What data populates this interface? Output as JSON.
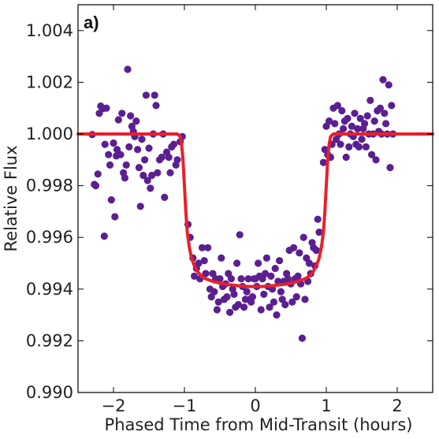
{
  "chart_data": {
    "type": "scatter",
    "panel_label": "a)",
    "xlabel": "Phased Time from Mid-Transit (hours)",
    "ylabel": "Relative Flux",
    "xlim": [
      -2.5,
      2.5
    ],
    "ylim": [
      0.99,
      1.005
    ],
    "x_ticks": [
      -2,
      -1,
      0,
      1,
      2
    ],
    "x_tick_labels": [
      "−2",
      "−1",
      "0",
      "1",
      "2"
    ],
    "y_ticks": [
      0.99,
      0.992,
      0.994,
      0.996,
      0.998,
      1.0,
      1.002,
      1.004
    ],
    "y_tick_labels": [
      "0.990",
      "0.992",
      "0.994",
      "0.996",
      "0.998",
      "1.000",
      "1.002",
      "1.004"
    ],
    "grid": false,
    "colors": {
      "points": "#5b1f91",
      "model": "#e8202a"
    },
    "series": [
      {
        "kind": "points",
        "points": [
          [
            -2.3,
            0.99998
          ],
          [
            -2.27,
            0.99805
          ],
          [
            -2.25,
            0.998
          ],
          [
            -2.22,
            0.99845
          ],
          [
            -2.2,
            1.0008
          ],
          [
            -2.18,
            1.00108
          ],
          [
            -2.15,
            1.00098
          ],
          [
            -2.13,
            0.99605
          ],
          [
            -2.12,
            0.9996
          ],
          [
            -2.1,
            1.001
          ],
          [
            -2.07,
            0.9992
          ],
          [
            -2.05,
            0.9988
          ],
          [
            -2.03,
            0.99745
          ],
          [
            -2.0,
            0.99965
          ],
          [
            -1.98,
            0.9968
          ],
          [
            -1.96,
            0.99915
          ],
          [
            -1.95,
            0.9994
          ],
          [
            -1.93,
            1.00055
          ],
          [
            -1.9,
            0.9992
          ],
          [
            -1.88,
            1.0008
          ],
          [
            -1.86,
            0.9985
          ],
          [
            -1.84,
            0.9983
          ],
          [
            -1.82,
            0.9988
          ],
          [
            -1.8,
            1.0025
          ],
          [
            -1.78,
            0.9995
          ],
          [
            -1.76,
            1.0007
          ],
          [
            -1.74,
            1.0003
          ],
          [
            -1.72,
            1.0001
          ],
          [
            -1.7,
            0.9999
          ],
          [
            -1.68,
            1.0005
          ],
          [
            -1.66,
            0.9994
          ],
          [
            -1.64,
            0.9987
          ],
          [
            -1.62,
            0.9972
          ],
          [
            -1.6,
            0.9998
          ],
          [
            -1.58,
            0.9984
          ],
          [
            -1.56,
            0.999
          ],
          [
            -1.54,
            1.0015
          ],
          [
            -1.52,
            0.9982
          ],
          [
            -1.5,
            0.99945
          ],
          [
            -1.48,
            0.9979
          ],
          [
            -1.46,
            0.9984
          ],
          [
            -1.44,
            1.0
          ],
          [
            -1.42,
            1.0015
          ],
          [
            -1.4,
            1.0011
          ],
          [
            -1.38,
            0.9985
          ],
          [
            -1.35,
            0.999
          ],
          [
            -1.32,
            0.9991
          ],
          [
            -1.3,
            1.0
          ],
          [
            -1.28,
            0.99755
          ],
          [
            -1.25,
            0.9993
          ],
          [
            -1.22,
            0.9991
          ],
          [
            -1.2,
            0.9985
          ],
          [
            -1.18,
            0.9995
          ],
          [
            -1.15,
            0.9996
          ],
          [
            -1.12,
            0.9988
          ],
          [
            -1.1,
            0.999
          ],
          [
            -1.06,
            0.9997
          ],
          [
            -1.03,
            0.9999
          ],
          [
            -0.95,
            0.9965
          ],
          [
            -0.92,
            0.996
          ],
          [
            -0.88,
            0.9952
          ],
          [
            -0.86,
            0.9945
          ],
          [
            -0.83,
            0.9948
          ],
          [
            -0.8,
            0.995
          ],
          [
            -0.78,
            0.9944
          ],
          [
            -0.75,
            0.9956
          ],
          [
            -0.72,
            0.9951
          ],
          [
            -0.7,
            0.9946
          ],
          [
            -0.67,
            0.9956
          ],
          [
            -0.64,
            0.994
          ],
          [
            -0.62,
            0.9937
          ],
          [
            -0.6,
            0.9946
          ],
          [
            -0.58,
            0.9939
          ],
          [
            -0.56,
            0.9944
          ],
          [
            -0.54,
            0.9932
          ],
          [
            -0.52,
            0.9935
          ],
          [
            -0.5,
            0.9944
          ],
          [
            -0.48,
            0.9952
          ],
          [
            -0.46,
            0.9941
          ],
          [
            -0.44,
            0.9936
          ],
          [
            -0.42,
            0.9942
          ],
          [
            -0.4,
            0.9937
          ],
          [
            -0.38,
            0.9946
          ],
          [
            -0.36,
            0.9931
          ],
          [
            -0.34,
            0.9944
          ],
          [
            -0.32,
            0.994
          ],
          [
            -0.3,
            0.9938
          ],
          [
            -0.28,
            0.9933
          ],
          [
            -0.26,
            0.995
          ],
          [
            -0.24,
            0.9934
          ],
          [
            -0.22,
            0.9961
          ],
          [
            -0.2,
            0.9944
          ],
          [
            -0.18,
            0.9941
          ],
          [
            -0.16,
            0.9933
          ],
          [
            -0.14,
            0.9936
          ],
          [
            -0.12,
            0.9939
          ],
          [
            -0.1,
            0.9944
          ],
          [
            -0.08,
            0.9936
          ],
          [
            -0.06,
            0.9935
          ],
          [
            -0.04,
            0.9937
          ],
          [
            -0.02,
            0.9944
          ],
          [
            0.0,
            0.9944
          ],
          [
            0.02,
            0.9941
          ],
          [
            0.04,
            0.995
          ],
          [
            0.06,
            0.9945
          ],
          [
            0.08,
            0.9932
          ],
          [
            0.1,
            0.9944
          ],
          [
            0.12,
            0.9938
          ],
          [
            0.14,
            0.9946
          ],
          [
            0.16,
            0.9952
          ],
          [
            0.18,
            0.9941
          ],
          [
            0.2,
            0.9933
          ],
          [
            0.22,
            0.9945
          ],
          [
            0.24,
            0.994
          ],
          [
            0.26,
            0.9935
          ],
          [
            0.28,
            0.9948
          ],
          [
            0.3,
            0.993
          ],
          [
            0.32,
            0.9943
          ],
          [
            0.34,
            0.9951
          ],
          [
            0.36,
            0.9939
          ],
          [
            0.38,
            0.9936
          ],
          [
            0.4,
            0.9943
          ],
          [
            0.42,
            0.9934
          ],
          [
            0.44,
            0.9946
          ],
          [
            0.46,
            0.9944
          ],
          [
            0.48,
            0.9955
          ],
          [
            0.5,
            0.9942
          ],
          [
            0.52,
            0.9935
          ],
          [
            0.54,
            0.9956
          ],
          [
            0.56,
            0.9944
          ],
          [
            0.58,
            0.9937
          ],
          [
            0.6,
            0.9945
          ],
          [
            0.62,
            0.9954
          ],
          [
            0.64,
            0.9942
          ],
          [
            0.66,
            0.9921
          ],
          [
            0.68,
            0.996
          ],
          [
            0.7,
            0.9936
          ],
          [
            0.72,
            0.9952
          ],
          [
            0.74,
            0.9943
          ],
          [
            0.76,
            0.995
          ],
          [
            0.78,
            0.9946
          ],
          [
            0.8,
            0.9958
          ],
          [
            0.82,
            0.9956
          ],
          [
            0.84,
            0.9949
          ],
          [
            0.86,
            0.9955
          ],
          [
            0.88,
            0.9967
          ],
          [
            0.9,
            0.9962
          ],
          [
            0.96,
            0.9989
          ],
          [
            0.98,
            0.9994
          ],
          [
            1.0,
            1.0003
          ],
          [
            1.02,
            0.9992
          ],
          [
            1.04,
            1.0005
          ],
          [
            1.06,
            0.9991
          ],
          [
            1.08,
            0.9996
          ],
          [
            1.1,
            1.001
          ],
          [
            1.12,
            1.0004
          ],
          [
            1.14,
            0.9998
          ],
          [
            1.16,
            1.0011
          ],
          [
            1.18,
            1.0
          ],
          [
            1.2,
            0.9996
          ],
          [
            1.22,
            1.0009
          ],
          [
            1.24,
            1.0002
          ],
          [
            1.26,
            1.0005
          ],
          [
            1.28,
            0.9991
          ],
          [
            1.3,
            1.0006
          ],
          [
            1.32,
            0.9995
          ],
          [
            1.34,
            1.0
          ],
          [
            1.36,
            1.0003
          ],
          [
            1.38,
            0.9999
          ],
          [
            1.4,
            1.0008
          ],
          [
            1.42,
            0.9996
          ],
          [
            1.44,
            1.0002
          ],
          [
            1.46,
            0.9995
          ],
          [
            1.48,
            1.0006
          ],
          [
            1.5,
            0.9998
          ],
          [
            1.52,
            1.0002
          ],
          [
            1.54,
            1.0004
          ],
          [
            1.56,
            0.9995
          ],
          [
            1.58,
            1.0007
          ],
          [
            1.6,
            1.0
          ],
          [
            1.62,
            1.0013
          ],
          [
            1.64,
            0.9992
          ],
          [
            1.66,
            1.0
          ],
          [
            1.68,
            1.0005
          ],
          [
            1.7,
            0.999
          ],
          [
            1.72,
            1.0009
          ],
          [
            1.74,
            1.0001
          ],
          [
            1.76,
            1.001
          ],
          [
            1.78,
            1.0
          ],
          [
            1.8,
            1.0021
          ],
          [
            1.82,
            1.0008
          ],
          [
            1.84,
            1.0004
          ],
          [
            1.86,
            1.0
          ],
          [
            1.88,
            1.0019
          ],
          [
            1.9,
            0.9987
          ],
          [
            1.92,
            1.0011
          ],
          [
            1.94,
            1.0
          ]
        ]
      },
      {
        "kind": "model_line",
        "x": [
          -2.5,
          -1.1,
          -1.06,
          -1.04,
          -1.02,
          -1.0,
          -0.98,
          -0.96,
          -0.93,
          -0.9,
          -0.86,
          -0.82,
          -0.76,
          -0.7,
          -0.6,
          -0.5,
          -0.4,
          -0.3,
          -0.2,
          -0.1,
          0.0,
          0.1,
          0.2,
          0.3,
          0.4,
          0.5,
          0.6,
          0.7,
          0.76,
          0.82,
          0.86,
          0.9,
          0.93,
          0.96,
          0.98,
          1.0,
          1.02,
          1.04,
          1.06,
          1.1,
          2.5
        ],
        "y": [
          1.0,
          1.0,
          0.9999,
          0.9996,
          0.999,
          0.998,
          0.997,
          0.9962,
          0.9956,
          0.9952,
          0.9949,
          0.9947,
          0.9945,
          0.9944,
          0.9943,
          0.99423,
          0.99418,
          0.99415,
          0.99412,
          0.9941,
          0.9941,
          0.9941,
          0.99412,
          0.99415,
          0.99418,
          0.99423,
          0.9943,
          0.9944,
          0.9945,
          0.9947,
          0.9949,
          0.9952,
          0.9956,
          0.9962,
          0.997,
          0.998,
          0.999,
          0.9996,
          0.9999,
          1.0,
          1.0
        ]
      }
    ]
  }
}
